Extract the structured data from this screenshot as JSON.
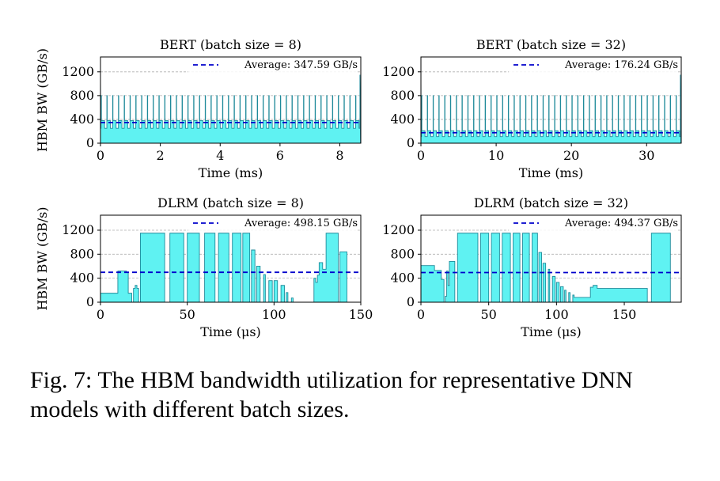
{
  "caption": "Fig. 7: The HBM bandwidth utilization for representative DNN models with different batch sizes.",
  "chart_data": [
    {
      "type": "area",
      "title": "BERT (batch size = 8)",
      "xlabel": "Time (ms)",
      "ylabel": "HBM BW (GB/s)",
      "xlim": [
        0,
        8.7
      ],
      "ylim": [
        0,
        1450
      ],
      "xticks": [
        0,
        2,
        4,
        6,
        8
      ],
      "yticks": [
        0,
        400,
        800,
        1200
      ],
      "grid": "y-dashed",
      "legend": "top-right",
      "average": {
        "label": "Average: 347.59 GB/s",
        "value": 347.59
      },
      "pattern": {
        "kind": "bert",
        "periods": 45,
        "base": 250,
        "plateau": 380,
        "spike": 800,
        "edge_spike": 1150
      },
      "color": "#5ff2f2"
    },
    {
      "type": "area",
      "title": "BERT (batch size = 32)",
      "xlabel": "Time (ms)",
      "ylabel": "",
      "xlim": [
        0,
        34.6
      ],
      "ylim": [
        0,
        1450
      ],
      "xticks": [
        0,
        10,
        20,
        30
      ],
      "yticks": [
        0,
        400,
        800,
        1200
      ],
      "grid": "y-dashed",
      "legend": "top-right",
      "average": {
        "label": "Average: 176.24 GB/s",
        "value": 176.24
      },
      "pattern": {
        "kind": "bert",
        "periods": 45,
        "base": 110,
        "plateau": 210,
        "spike": 800,
        "edge_spike": 1150
      },
      "color": "#5ff2f2"
    },
    {
      "type": "area",
      "title": "DLRM (batch size = 8)",
      "xlabel": "Time (μs)",
      "ylabel": "HBM BW (GB/s)",
      "xlim": [
        0,
        150
      ],
      "ylim": [
        0,
        1450
      ],
      "xticks": [
        0,
        50,
        100,
        150
      ],
      "yticks": [
        0,
        400,
        800,
        1200
      ],
      "grid": "y-dashed",
      "legend": "top-right",
      "average": {
        "label": "Average: 498.15 GB/s",
        "value": 498.15
      },
      "steps": [
        [
          0,
          150
        ],
        [
          10,
          520
        ],
        [
          15,
          500
        ],
        [
          16,
          150
        ],
        [
          18,
          0
        ],
        [
          19,
          230
        ],
        [
          20,
          280
        ],
        [
          21,
          230
        ],
        [
          22,
          0
        ],
        [
          23,
          1150
        ],
        [
          37,
          0
        ],
        [
          40,
          1150
        ],
        [
          48,
          0
        ],
        [
          50,
          1150
        ],
        [
          57,
          0
        ],
        [
          60,
          1150
        ],
        [
          66,
          0
        ],
        [
          68,
          1150
        ],
        [
          74,
          0
        ],
        [
          76,
          1150
        ],
        [
          81,
          0
        ],
        [
          82,
          1150
        ],
        [
          86,
          0
        ],
        [
          87,
          870
        ],
        [
          89,
          0
        ],
        [
          90,
          600
        ],
        [
          92,
          0
        ],
        [
          94,
          460
        ],
        [
          95,
          0
        ],
        [
          97,
          360
        ],
        [
          99,
          0
        ],
        [
          100,
          360
        ],
        [
          102,
          0
        ],
        [
          104,
          280
        ],
        [
          106,
          0
        ],
        [
          107,
          160
        ],
        [
          108,
          0
        ],
        [
          110,
          70
        ],
        [
          111,
          0
        ],
        [
          118,
          0
        ],
        [
          122,
          0
        ],
        [
          123,
          400
        ],
        [
          124,
          330
        ],
        [
          125,
          450
        ],
        [
          126,
          660
        ],
        [
          128,
          550
        ],
        [
          130,
          1150
        ],
        [
          137,
          0
        ],
        [
          138,
          840
        ],
        [
          142,
          0
        ],
        [
          150,
          0
        ]
      ],
      "color": "#5ff2f2"
    },
    {
      "type": "area",
      "title": "DLRM (batch size = 32)",
      "xlabel": "Time (μs)",
      "ylabel": "",
      "xlim": [
        0,
        192
      ],
      "ylim": [
        0,
        1450
      ],
      "xticks": [
        0,
        50,
        100,
        150
      ],
      "yticks": [
        0,
        400,
        800,
        1200
      ],
      "grid": "y-dashed",
      "legend": "top-right",
      "average": {
        "label": "Average: 494.37 GB/s",
        "value": 494.37
      },
      "steps": [
        [
          0,
          610
        ],
        [
          10,
          530
        ],
        [
          15,
          380
        ],
        [
          17,
          0
        ],
        [
          18,
          100
        ],
        [
          19,
          520
        ],
        [
          20,
          280
        ],
        [
          21,
          680
        ],
        [
          25,
          0
        ],
        [
          27,
          1150
        ],
        [
          42,
          0
        ],
        [
          44,
          1150
        ],
        [
          50,
          0
        ],
        [
          52,
          1150
        ],
        [
          58,
          0
        ],
        [
          60,
          1150
        ],
        [
          66,
          0
        ],
        [
          68,
          1150
        ],
        [
          73,
          0
        ],
        [
          75,
          1150
        ],
        [
          80,
          0
        ],
        [
          82,
          1150
        ],
        [
          86,
          0
        ],
        [
          87,
          830
        ],
        [
          89,
          0
        ],
        [
          90,
          650
        ],
        [
          92,
          0
        ],
        [
          94,
          550
        ],
        [
          95,
          0
        ],
        [
          97,
          430
        ],
        [
          99,
          0
        ],
        [
          100,
          330
        ],
        [
          102,
          0
        ],
        [
          103,
          260
        ],
        [
          105,
          0
        ],
        [
          106,
          200
        ],
        [
          107,
          0
        ],
        [
          109,
          160
        ],
        [
          110,
          0
        ],
        [
          112,
          120
        ],
        [
          113,
          80
        ],
        [
          115,
          80
        ],
        [
          117,
          80
        ],
        [
          119,
          80
        ],
        [
          121,
          80
        ],
        [
          123,
          80
        ],
        [
          125,
          250
        ],
        [
          127,
          280
        ],
        [
          130,
          230
        ],
        [
          167,
          0
        ],
        [
          169,
          0
        ],
        [
          170,
          1150
        ],
        [
          184,
          0
        ],
        [
          192,
          0
        ]
      ],
      "color": "#5ff2f2"
    }
  ]
}
